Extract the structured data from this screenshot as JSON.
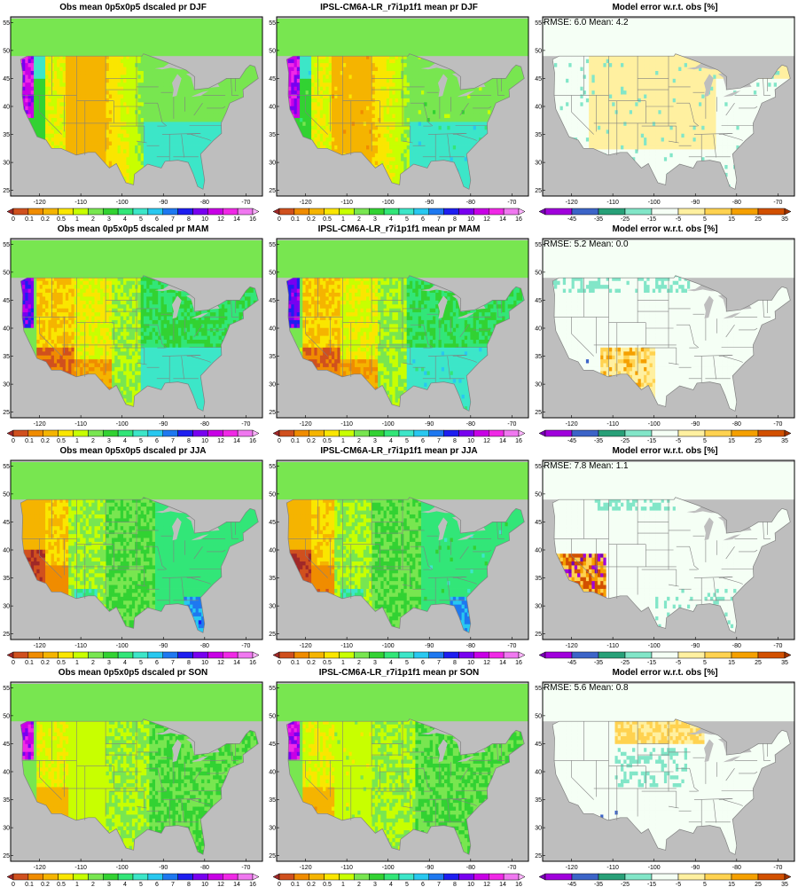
{
  "figure": {
    "rows": [
      {
        "season": "DJF",
        "panels": [
          {
            "kind": "obs",
            "title": "Obs mean 0p5x0p5 dscaled pr DJF"
          },
          {
            "kind": "model",
            "title": "IPSL-CM6A-LR_r7i1p1f1 mean pr DJF"
          },
          {
            "kind": "error",
            "title": "Model error w.r.t. obs [%]",
            "stats": "RMSE: 6.0  Mean: 4.2"
          }
        ]
      },
      {
        "season": "MAM",
        "panels": [
          {
            "kind": "obs",
            "title": "Obs mean 0p5x0p5 dscaled pr MAM"
          },
          {
            "kind": "model",
            "title": "IPSL-CM6A-LR_r7i1p1f1 mean pr MAM"
          },
          {
            "kind": "error",
            "title": "Model error w.r.t. obs [%]",
            "stats": "RMSE: 5.2  Mean: 0.0"
          }
        ]
      },
      {
        "season": "JJA",
        "panels": [
          {
            "kind": "obs",
            "title": "Obs mean 0p5x0p5 dscaled pr JJA"
          },
          {
            "kind": "model",
            "title": "IPSL-CM6A-LR_r7i1p1f1 mean pr JJA"
          },
          {
            "kind": "error",
            "title": "Model error w.r.t. obs [%]",
            "stats": "RMSE: 7.8  Mean: 1.1"
          }
        ]
      },
      {
        "season": "SON",
        "panels": [
          {
            "kind": "obs",
            "title": "Obs mean 0p5x0p5 dscaled pr SON"
          },
          {
            "kind": "model",
            "title": "IPSL-CM6A-LR_r7i1p1f1 mean pr SON"
          },
          {
            "kind": "error",
            "title": "Model error w.r.t. obs [%]",
            "stats": "RMSE: 5.6  Mean: 0.8"
          }
        ]
      }
    ],
    "lat_ticks": [
      "25",
      "30",
      "35",
      "40",
      "45",
      "50",
      "55"
    ],
    "lon_ticks": [
      "-120",
      "-110",
      "-100",
      "-90",
      "-80",
      "-70"
    ],
    "lon_range": [
      -127,
      -66
    ],
    "lat_range": [
      24,
      56
    ],
    "precip_colorbar": {
      "labels": [
        "0",
        "0.1",
        "0.2",
        "0.5",
        "1",
        "2",
        "3",
        "4",
        "5",
        "6",
        "7",
        "8",
        "10",
        "12",
        "14",
        "16"
      ],
      "colors": [
        "#a02828",
        "#d0501e",
        "#f08c00",
        "#f5b400",
        "#fae600",
        "#c8ff00",
        "#78e650",
        "#32d232",
        "#32e678",
        "#3ce6c8",
        "#28c8f0",
        "#1e78f0",
        "#1e1ef0",
        "#7800f0",
        "#c800e6",
        "#f028e6",
        "#f078f0",
        "#ffb4ff"
      ]
    },
    "error_colorbar": {
      "labels": [
        "-45",
        "-35",
        "-25",
        "-15",
        "-5",
        "5",
        "15",
        "25",
        "35",
        "45"
      ],
      "colors": [
        "#7800b4",
        "#a000dc",
        "#3c64c8",
        "#28a078",
        "#82e6c8",
        "#f5fff5",
        "#fff0a0",
        "#ffd250",
        "#f5a000",
        "#d25000",
        "#a03200"
      ]
    },
    "colors": {
      "background_gray": "#bebebe",
      "land_white": "#f5fff5",
      "border_gray": "#808080",
      "frame": "#000000"
    }
  }
}
